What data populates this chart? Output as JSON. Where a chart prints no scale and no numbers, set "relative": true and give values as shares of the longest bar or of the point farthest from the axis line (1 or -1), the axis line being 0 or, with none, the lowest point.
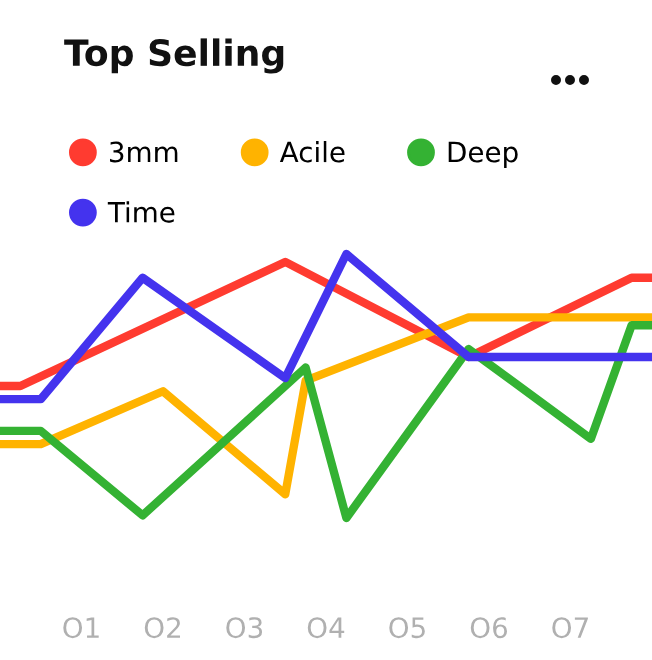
{
  "chart_data": {
    "type": "line",
    "title": "Top Selling",
    "relative": true,
    "legend": "top",
    "grid": false,
    "marker": "none",
    "line_style": "solid",
    "categories": [
      null,
      null,
      null,
      null,
      "O1",
      null,
      null,
      null,
      "O2",
      null,
      null,
      null,
      "O3",
      null,
      null,
      null,
      "O4",
      null,
      null,
      null,
      "O5",
      null,
      null,
      null,
      "O6",
      null,
      null,
      null,
      "O7",
      null,
      null,
      null,
      null
    ],
    "series": [
      {
        "name": "3mm",
        "color": "#ff3b30",
        "values": [
          0.5,
          0.5,
          null,
          null,
          null,
          null,
          null,
          null,
          null,
          null,
          null,
          null,
          null,
          null,
          0.97,
          null,
          null,
          null,
          null,
          null,
          null,
          null,
          null,
          0.61,
          null,
          null,
          null,
          null,
          null,
          null,
          null,
          0.91,
          0.91
        ]
      },
      {
        "name": "Acile",
        "color": "#ffb300",
        "values": [
          0.28,
          null,
          0.28,
          null,
          null,
          null,
          null,
          null,
          0.48,
          null,
          null,
          null,
          null,
          null,
          0.09,
          0.52,
          null,
          null,
          null,
          null,
          null,
          null,
          null,
          0.76,
          null,
          null,
          null,
          null,
          null,
          null,
          null,
          null,
          0.76
        ]
      },
      {
        "name": "Deep",
        "color": "#34b233",
        "values": [
          0.33,
          null,
          0.33,
          null,
          null,
          null,
          null,
          0.01,
          null,
          null,
          null,
          null,
          null,
          null,
          null,
          0.57,
          null,
          0.0,
          null,
          null,
          null,
          null,
          null,
          0.64,
          null,
          null,
          null,
          null,
          null,
          0.3,
          null,
          0.73,
          0.73
        ]
      },
      {
        "name": "Time",
        "color": "#4433ee",
        "values": [
          0.45,
          null,
          0.45,
          null,
          null,
          null,
          null,
          0.91,
          null,
          null,
          null,
          null,
          null,
          null,
          0.53,
          null,
          null,
          1.0,
          null,
          null,
          null,
          null,
          null,
          0.61,
          null,
          null,
          null,
          null,
          null,
          null,
          null,
          null,
          0.61
        ]
      }
    ]
  }
}
